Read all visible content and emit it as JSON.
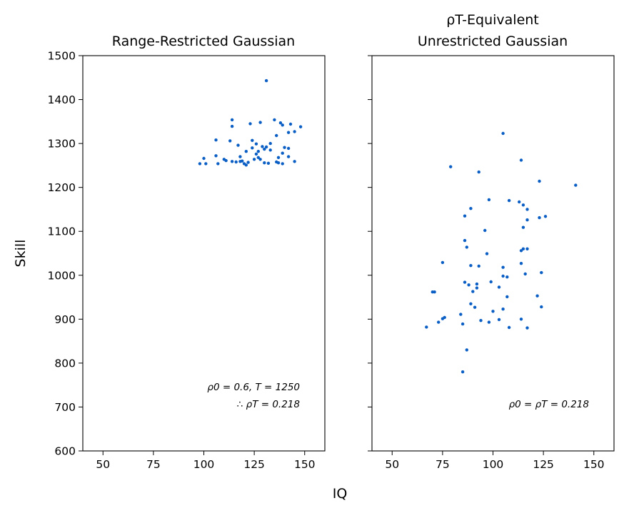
{
  "figure": {
    "ylabel": "Skill",
    "xlabel": "IQ"
  },
  "chart_data": [
    {
      "type": "scatter",
      "title": "Range-Restricted Gaussian",
      "xlim": [
        40,
        160
      ],
      "ylim": [
        600,
        1500
      ],
      "xticks": [
        50,
        75,
        100,
        125,
        150
      ],
      "yticks": [
        600,
        700,
        800,
        900,
        1000,
        1100,
        1200,
        1300,
        1400,
        1500
      ],
      "color": "#0b5fc4",
      "annotation_lines": [
        "ρ0 = 0.6, T = 1250",
        "∴ ρT = 0.218"
      ],
      "points": [
        [
          131,
          1443
        ],
        [
          114,
          1354
        ],
        [
          135,
          1354
        ],
        [
          128,
          1348
        ],
        [
          123,
          1345
        ],
        [
          138,
          1347
        ],
        [
          139,
          1342
        ],
        [
          143,
          1344
        ],
        [
          114,
          1339
        ],
        [
          148,
          1338
        ],
        [
          145,
          1327
        ],
        [
          142,
          1325
        ],
        [
          136,
          1318
        ],
        [
          106,
          1308
        ],
        [
          113,
          1306
        ],
        [
          124,
          1307
        ],
        [
          133,
          1300
        ],
        [
          126,
          1299
        ],
        [
          117,
          1296
        ],
        [
          129,
          1293
        ],
        [
          131,
          1292
        ],
        [
          140,
          1291
        ],
        [
          142,
          1289
        ],
        [
          124,
          1290
        ],
        [
          130,
          1287
        ],
        [
          133,
          1285
        ],
        [
          127,
          1282
        ],
        [
          121,
          1282
        ],
        [
          139,
          1278
        ],
        [
          126,
          1276
        ],
        [
          106,
          1272
        ],
        [
          118,
          1270
        ],
        [
          142,
          1270
        ],
        [
          127,
          1268
        ],
        [
          137,
          1268
        ],
        [
          100,
          1266
        ],
        [
          110,
          1264
        ],
        [
          125,
          1264
        ],
        [
          128,
          1264
        ],
        [
          111,
          1261
        ],
        [
          119,
          1260
        ],
        [
          114,
          1259
        ],
        [
          116,
          1258
        ],
        [
          136,
          1258
        ],
        [
          118,
          1259
        ],
        [
          122,
          1257
        ],
        [
          130,
          1256
        ],
        [
          137,
          1256
        ],
        [
          145,
          1259
        ],
        [
          98,
          1254
        ],
        [
          101,
          1254
        ],
        [
          107,
          1254
        ],
        [
          120,
          1254
        ],
        [
          132,
          1255
        ],
        [
          139,
          1254
        ],
        [
          121,
          1251
        ]
      ]
    },
    {
      "type": "scatter",
      "title_lines": [
        "ρT-Equivalent",
        "Unrestricted Gaussian"
      ],
      "xlim": [
        40,
        160
      ],
      "ylim": [
        600,
        1500
      ],
      "xticks": [
        50,
        75,
        100,
        125,
        150
      ],
      "yticks": [
        600,
        700,
        800,
        900,
        1000,
        1100,
        1200,
        1300,
        1400,
        1500
      ],
      "color": "#0b5fc4",
      "annotation_lines": [
        "ρ0 = ρT = 0.218"
      ],
      "points": [
        [
          105,
          1323
        ],
        [
          114,
          1262
        ],
        [
          79,
          1247
        ],
        [
          93,
          1235
        ],
        [
          123,
          1214
        ],
        [
          141,
          1205
        ],
        [
          98,
          1172
        ],
        [
          108,
          1170
        ],
        [
          113,
          1167
        ],
        [
          115,
          1160
        ],
        [
          117,
          1150
        ],
        [
          89,
          1152
        ],
        [
          126,
          1134
        ],
        [
          86,
          1135
        ],
        [
          123,
          1131
        ],
        [
          117,
          1126
        ],
        [
          115,
          1109
        ],
        [
          96,
          1102
        ],
        [
          86,
          1079
        ],
        [
          87,
          1064
        ],
        [
          115,
          1060
        ],
        [
          117,
          1060
        ],
        [
          114,
          1056
        ],
        [
          97,
          1049
        ],
        [
          75,
          1029
        ],
        [
          114,
          1027
        ],
        [
          89,
          1022
        ],
        [
          93,
          1021
        ],
        [
          105,
          1018
        ],
        [
          124,
          1006
        ],
        [
          116,
          1003
        ],
        [
          105,
          998
        ],
        [
          107,
          996
        ],
        [
          99,
          985
        ],
        [
          86,
          984
        ],
        [
          88,
          978
        ],
        [
          92,
          980
        ],
        [
          92,
          971
        ],
        [
          103,
          973
        ],
        [
          90,
          963
        ],
        [
          70,
          962
        ],
        [
          71,
          962
        ],
        [
          107,
          951
        ],
        [
          122,
          953
        ],
        [
          89,
          935
        ],
        [
          91,
          927
        ],
        [
          105,
          923
        ],
        [
          124,
          928
        ],
        [
          100,
          918
        ],
        [
          84,
          911
        ],
        [
          76,
          904
        ],
        [
          75,
          901
        ],
        [
          114,
          900
        ],
        [
          94,
          897
        ],
        [
          73,
          893
        ],
        [
          98,
          893
        ],
        [
          103,
          899
        ],
        [
          85,
          889
        ],
        [
          67,
          882
        ],
        [
          108,
          881
        ],
        [
          117,
          880
        ],
        [
          87,
          830
        ],
        [
          85,
          780
        ]
      ]
    }
  ]
}
